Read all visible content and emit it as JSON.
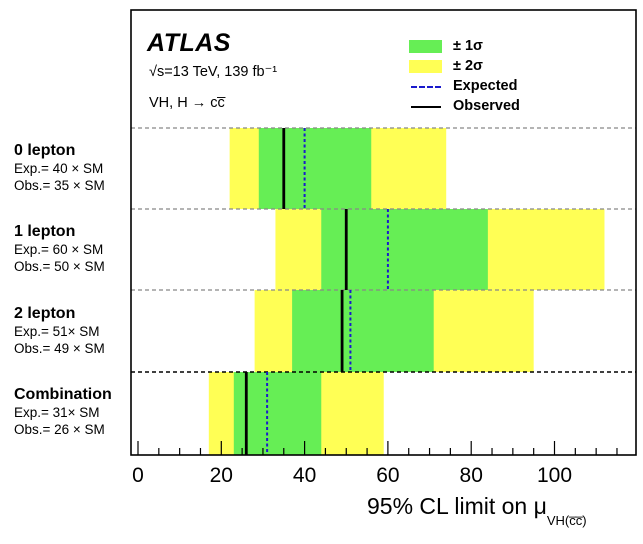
{
  "chart_data": {
    "type": "bar",
    "xlim": [
      0,
      120
    ],
    "xticks": [
      "0",
      "20",
      "40",
      "60",
      "80",
      "100"
    ],
    "xlabel": "95% CL limit on μ",
    "xlabel_sub": "VH(c̅c̅)",
    "experiment": "ATLAS",
    "energy_label": "√s=13 TeV, 139 fb⁻¹",
    "process_label": "VH, H → cc̅",
    "legend": {
      "one_sigma": "± 1σ",
      "two_sigma": "± 2σ",
      "expected": "Expected",
      "observed": "Observed"
    },
    "colors": {
      "one_sigma": "#66ee55",
      "two_sigma": "#ffff55",
      "expected": "#1a1acc",
      "observed": "#000000"
    },
    "categories": [
      {
        "name": "0 lepton",
        "exp_text": "Exp.= 40 × SM",
        "obs_text": "Obs.= 35 × SM",
        "expected": 40,
        "observed": 35,
        "one_sigma": [
          29,
          56
        ],
        "two_sigma": [
          22,
          74
        ]
      },
      {
        "name": "1 lepton",
        "exp_text": "Exp.= 60 × SM",
        "obs_text": "Obs.= 50 × SM",
        "expected": 60,
        "observed": 50,
        "one_sigma": [
          44,
          84
        ],
        "two_sigma": [
          33,
          112
        ]
      },
      {
        "name": "2 lepton",
        "exp_text": "Exp.= 51× SM",
        "obs_text": "Obs.= 49 × SM",
        "expected": 51,
        "observed": 49,
        "one_sigma": [
          37,
          71
        ],
        "two_sigma": [
          28,
          95
        ]
      },
      {
        "name": "Combination",
        "exp_text": "Exp.= 31× SM",
        "obs_text": "Obs.= 26 × SM",
        "expected": 31,
        "observed": 26,
        "one_sigma": [
          23,
          44
        ],
        "two_sigma": [
          17,
          59
        ]
      }
    ]
  }
}
